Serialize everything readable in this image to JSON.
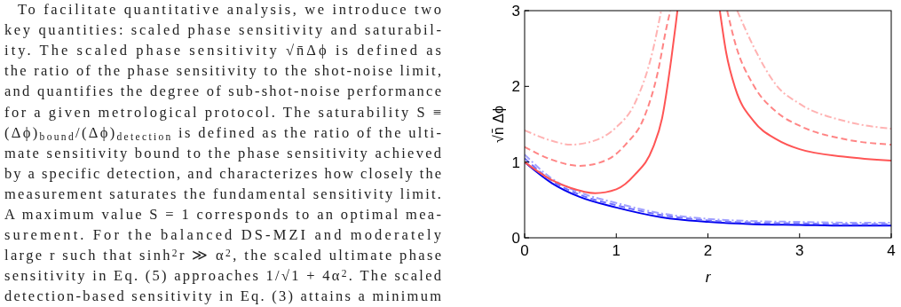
{
  "chart_data": {
    "type": "line",
    "xlabel": "r",
    "ylabel": "√n̄ Δϕ",
    "xlim": [
      0,
      4
    ],
    "ylim": [
      0,
      3
    ],
    "xticks": [
      0,
      1,
      2,
      3,
      4
    ],
    "yticks": [
      0,
      1,
      2,
      3
    ],
    "grid": false,
    "series": [
      {
        "color": "#0000ee",
        "line_style": "solid",
        "x": [
          0,
          0.3,
          0.6,
          1.0,
          1.5,
          2.0,
          2.5,
          3.0,
          3.5,
          4.0
        ],
        "values": [
          1.0,
          0.72,
          0.54,
          0.4,
          0.27,
          0.21,
          0.18,
          0.17,
          0.16,
          0.16
        ]
      },
      {
        "color": "#6f6fff",
        "line_style": "dashed",
        "x": [
          0,
          0.3,
          0.6,
          1.0,
          1.5,
          2.0,
          2.5,
          3.0,
          3.5,
          4.0
        ],
        "values": [
          1.05,
          0.75,
          0.57,
          0.43,
          0.3,
          0.23,
          0.2,
          0.19,
          0.18,
          0.18
        ]
      },
      {
        "color": "#a0a0ff",
        "line_style": "dashdot",
        "x": [
          0,
          0.3,
          0.6,
          1.0,
          1.5,
          2.0,
          2.5,
          3.0,
          3.5,
          4.0
        ],
        "values": [
          1.1,
          0.78,
          0.6,
          0.46,
          0.32,
          0.25,
          0.22,
          0.21,
          0.2,
          0.2
        ]
      },
      {
        "color": "#ff5555",
        "line_style": "solid",
        "x": [
          0,
          0.3,
          0.5,
          0.77,
          1.0,
          1.2,
          1.4,
          1.5,
          1.6,
          1.65,
          1.667,
          1.9,
          2.13,
          2.2,
          2.3,
          2.5,
          2.75,
          3.0,
          3.5,
          4.0
        ],
        "values": [
          1.0,
          0.76,
          0.66,
          0.59,
          0.64,
          0.83,
          1.19,
          1.58,
          2.36,
          2.83,
          3.0,
          null,
          3.0,
          2.44,
          1.97,
          1.54,
          1.3,
          1.17,
          1.07,
          1.02
        ]
      },
      {
        "color": "#ff8585",
        "line_style": "dashed",
        "x": [
          0,
          0.3,
          0.6,
          0.9,
          1.1,
          1.3,
          1.45,
          1.55,
          1.59,
          1.9,
          2.21,
          2.3,
          2.5,
          2.75,
          3.0,
          3.5,
          4.0
        ],
        "values": [
          1.2,
          1.03,
          0.95,
          1.03,
          1.23,
          1.58,
          2.17,
          2.79,
          3.0,
          null,
          3.0,
          2.56,
          2.01,
          1.66,
          1.48,
          1.3,
          1.23
        ]
      },
      {
        "color": "#ffb3b3",
        "line_style": "dashdot",
        "x": [
          0,
          0.3,
          0.5,
          0.8,
          1.0,
          1.2,
          1.4,
          1.49,
          1.9,
          2.32,
          2.5,
          2.75,
          3.0,
          3.5,
          4.0
        ],
        "values": [
          1.42,
          1.28,
          1.23,
          1.3,
          1.46,
          1.77,
          2.48,
          3.0,
          null,
          3.0,
          2.52,
          2.01,
          1.77,
          1.54,
          1.44
        ]
      }
    ],
    "annotations": [
      "To facilitate quantitative analysis, we introduce two",
      "key quantities: scaled phase sensitivity and saturabil-",
      "ity. The scaled phase sensitivity √n̄Δϕ is defined as",
      "the ratio of the phase sensitivity to the shot-noise limit,",
      "and quantifies the degree of sub-shot-noise performance",
      "for a given metrological protocol. The saturability S ≡",
      "(Δϕ)$_{bound}$/(Δϕ)$_{detection}$ is defined as the ratio of the ulti-",
      "mate sensitivity bound to the phase sensitivity achieved",
      "by a specific detection, and characterizes how closely the",
      "measurement saturates the fundamental sensitivity limit.",
      "A maximum value S = 1 corresponds to an optimal mea-",
      "surement. For the balanced DS-MZI and moderately",
      "large r such that sinh$^{2}$r ≫ α$^{2}$, the scaled ultimate phase",
      "sensitivity in Eq. (5) approaches 1/√1 + 4α$^{2}$. The scaled",
      "detection-based sensitivity in Eq. (3) attains a minimum"
    ]
  }
}
